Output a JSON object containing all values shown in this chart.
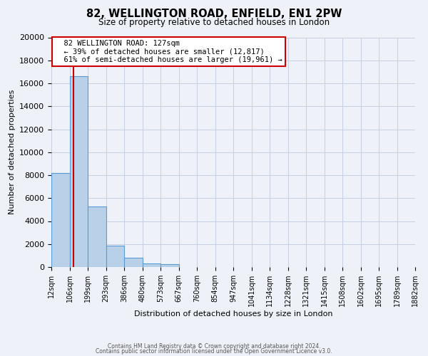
{
  "title": "82, WELLINGTON ROAD, ENFIELD, EN1 2PW",
  "subtitle": "Size of property relative to detached houses in London",
  "xlabel": "Distribution of detached houses by size in London",
  "ylabel": "Number of detached properties",
  "property_size": 127,
  "property_label": "82 WELLINGTON ROAD: 127sqm",
  "pct_smaller": 39,
  "num_smaller": 12817,
  "pct_larger": 61,
  "num_larger": 19961,
  "bin_edges": [
    12,
    106,
    199,
    293,
    386,
    480,
    573,
    667,
    760,
    854,
    947,
    1041,
    1134,
    1228,
    1321,
    1415,
    1508,
    1602,
    1695,
    1789,
    1882
  ],
  "bin_counts": [
    8200,
    16600,
    5300,
    1850,
    780,
    310,
    260,
    0,
    0,
    0,
    0,
    0,
    0,
    0,
    0,
    0,
    0,
    0,
    0,
    0
  ],
  "bar_color": "#b8d0e8",
  "bar_edge_color": "#5b9bd5",
  "red_line_color": "#cc0000",
  "annotation_box_edge": "#cc0000",
  "background_color": "#eef2f8",
  "grid_color": "#c5cfe0",
  "tick_labels": [
    "12sqm",
    "106sqm",
    "199sqm",
    "293sqm",
    "386sqm",
    "480sqm",
    "573sqm",
    "667sqm",
    "760sqm",
    "854sqm",
    "947sqm",
    "1041sqm",
    "1134sqm",
    "1228sqm",
    "1321sqm",
    "1415sqm",
    "1508sqm",
    "1602sqm",
    "1695sqm",
    "1789sqm",
    "1882sqm"
  ],
  "ylim": [
    0,
    20000
  ],
  "yticks": [
    0,
    2000,
    4000,
    6000,
    8000,
    10000,
    12000,
    14000,
    16000,
    18000,
    20000
  ],
  "footer_line1": "Contains HM Land Registry data © Crown copyright and database right 2024.",
  "footer_line2": "Contains public sector information licensed under the Open Government Licence v3.0."
}
